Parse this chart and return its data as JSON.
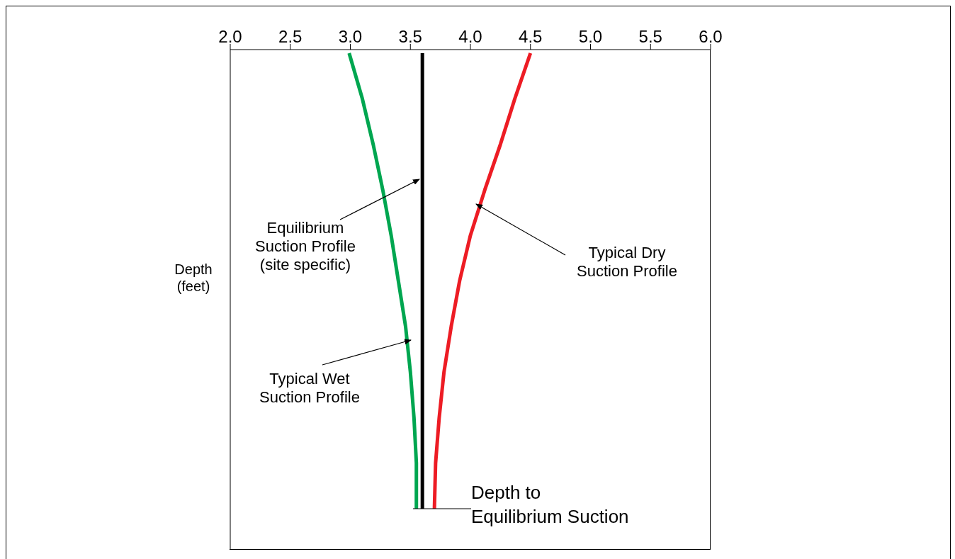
{
  "chart_data": {
    "type": "line",
    "orientation": "horizontal",
    "ylabel": "Depth\n(feet)",
    "categories": [
      null,
      null,
      null,
      null,
      null,
      null,
      null,
      null,
      null,
      null,
      null
    ],
    "xlim": [
      2,
      6
    ],
    "xticks": [
      {
        "value": 2,
        "label": "2.0"
      },
      {
        "value": 2.5,
        "label": "2.5"
      },
      {
        "value": 3,
        "label": "3.0"
      },
      {
        "value": 3.5,
        "label": "3.5"
      },
      {
        "value": 4,
        "label": "4.0"
      },
      {
        "value": 4.5,
        "label": "4.5"
      },
      {
        "value": 5,
        "label": "5.0"
      },
      {
        "value": 5.5,
        "label": "5.5"
      },
      {
        "value": 6,
        "label": "6.0"
      }
    ],
    "series": [
      {
        "color": "#00a650",
        "values": [
          2.99,
          3.1,
          3.19,
          3.27,
          3.34,
          3.4,
          3.46,
          3.5,
          3.53,
          3.55,
          3.55
        ]
      },
      {
        "color": "#ed1c24",
        "values": [
          4.5,
          4.37,
          4.25,
          4.12,
          4.0,
          3.91,
          3.84,
          3.78,
          3.74,
          3.71,
          3.7
        ]
      },
      {
        "color": "#000000",
        "values": [
          3.6,
          3.6,
          3.6,
          3.6,
          3.6,
          3.6,
          3.6,
          3.6,
          3.6,
          3.6,
          3.6
        ]
      }
    ],
    "annotations": [
      "Equilibrium\nSuction Profile\n(site specific)",
      "Typical Dry\nSuction Profile",
      "Typical Wet\nSuction Profile",
      "Depth to\nEquilibrium Suction"
    ]
  }
}
